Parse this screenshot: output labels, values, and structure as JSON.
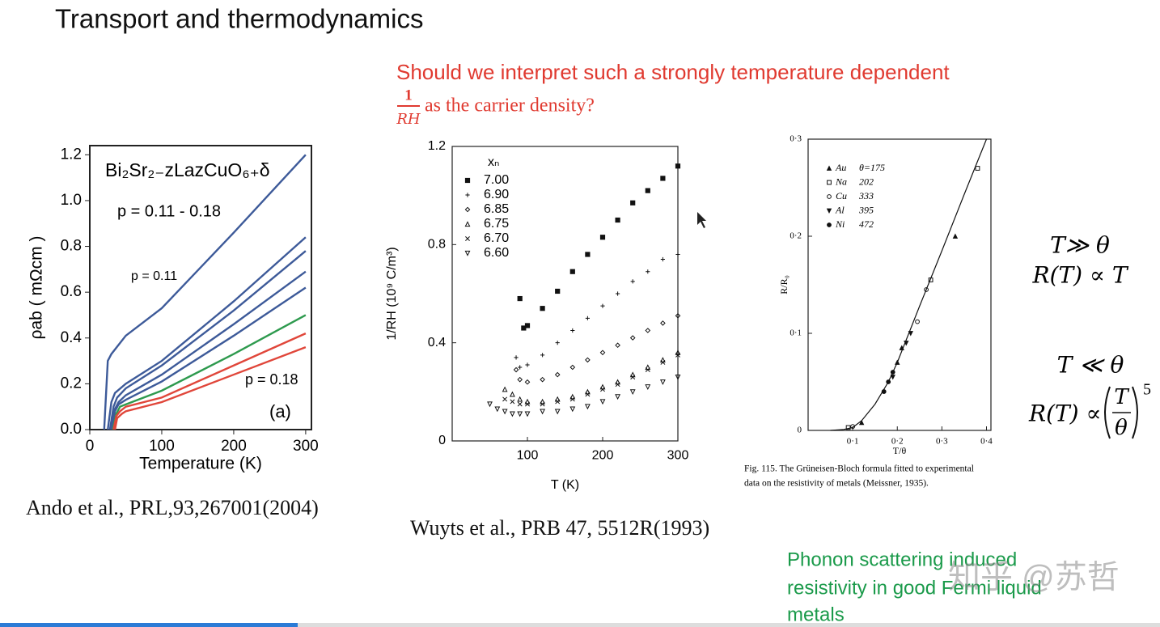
{
  "slide": {
    "title": "Transport and thermodynamics",
    "question": {
      "line1": "Should we interpret such a strongly temperature dependent",
      "numerator": "1",
      "denominator": "RH",
      "line2": "as the carrier density?"
    }
  },
  "chart_data": [
    {
      "type": "line",
      "title": "Bi₂Sr₂₋zLazCuO₆₊δ",
      "x_label": "Temperature (K)",
      "y_label": "ρab  ( mΩcm )",
      "annotations": [
        "p = 0.11 - 0.18",
        "p = 0.11",
        "p = 0.18",
        "(a)"
      ],
      "xlim": [
        0,
        308
      ],
      "ylim": [
        0,
        1.24
      ],
      "xticks": [
        0,
        100,
        200,
        300
      ],
      "yticks": [
        {
          "value": 0,
          "label": "0.0"
        },
        0.2,
        0.4,
        0.6,
        0.8,
        {
          "value": 1,
          "label": "1.0"
        },
        1.2
      ],
      "series": [
        {
          "color": "#3d5a99",
          "x": [
            20,
            25,
            30,
            50,
            100,
            200,
            300
          ],
          "values": [
            0,
            0.3,
            0.33,
            0.41,
            0.53,
            0.86,
            1.2
          ]
        },
        {
          "color": "#3d5a99",
          "x": [
            25,
            30,
            35,
            50,
            100,
            200,
            300
          ],
          "values": [
            0,
            0.12,
            0.16,
            0.2,
            0.3,
            0.56,
            0.84
          ]
        },
        {
          "color": "#3d5a99",
          "x": [
            28,
            33,
            38,
            50,
            100,
            200,
            300
          ],
          "values": [
            0,
            0.1,
            0.14,
            0.18,
            0.28,
            0.52,
            0.78
          ]
        },
        {
          "color": "#3d5a99",
          "x": [
            30,
            35,
            40,
            50,
            100,
            200,
            300
          ],
          "values": [
            0,
            0.09,
            0.12,
            0.15,
            0.24,
            0.46,
            0.69
          ]
        },
        {
          "color": "#3d5a99",
          "x": [
            30,
            35,
            40,
            50,
            100,
            200,
            300
          ],
          "values": [
            0,
            0.08,
            0.11,
            0.13,
            0.21,
            0.41,
            0.62
          ]
        },
        {
          "color": "#2e9a4e",
          "x": [
            32,
            37,
            42,
            50,
            100,
            200,
            300
          ],
          "values": [
            0,
            0.07,
            0.1,
            0.11,
            0.17,
            0.33,
            0.5
          ]
        },
        {
          "color": "#e0463a",
          "x": [
            33,
            37,
            42,
            50,
            100,
            200,
            300
          ],
          "values": [
            0,
            0.06,
            0.08,
            0.1,
            0.14,
            0.28,
            0.42
          ]
        },
        {
          "color": "#e0463a",
          "x": [
            35,
            38,
            45,
            50,
            100,
            200,
            300
          ],
          "values": [
            0,
            0.05,
            0.07,
            0.08,
            0.12,
            0.24,
            0.36
          ]
        }
      ]
    },
    {
      "type": "scatter",
      "x_label": "T (K)",
      "y_label": "1/RH  (10⁹ C/m³)",
      "legend_title": "xₙ",
      "xlim": [
        0,
        300
      ],
      "ylim": [
        0,
        1.2
      ],
      "xticks": [
        100,
        200,
        300
      ],
      "yticks": [
        0,
        0.4,
        0.8,
        1.2
      ],
      "series": [
        {
          "name": "7.00",
          "color": "#111",
          "marker": "square",
          "filled": true,
          "x": [
            90,
            95,
            100,
            120,
            140,
            160,
            180,
            200,
            220,
            240,
            260,
            280,
            300
          ],
          "values": [
            0.58,
            0.46,
            0.47,
            0.54,
            0.61,
            0.69,
            0.76,
            0.83,
            0.9,
            0.97,
            1.02,
            1.07,
            1.12
          ]
        },
        {
          "name": "6.90",
          "color": "#111",
          "marker": "plus",
          "filled": false,
          "x": [
            85,
            90,
            100,
            120,
            140,
            160,
            180,
            200,
            220,
            240,
            260,
            280,
            300
          ],
          "values": [
            0.34,
            0.3,
            0.31,
            0.35,
            0.4,
            0.45,
            0.5,
            0.55,
            0.6,
            0.65,
            0.69,
            0.74,
            0.76
          ]
        },
        {
          "name": "6.85",
          "color": "#111",
          "marker": "diamond",
          "filled": false,
          "x": [
            85,
            90,
            100,
            120,
            140,
            160,
            180,
            200,
            220,
            240,
            260,
            280,
            300
          ],
          "values": [
            0.29,
            0.25,
            0.24,
            0.25,
            0.27,
            0.3,
            0.33,
            0.36,
            0.39,
            0.42,
            0.45,
            0.48,
            0.51
          ]
        },
        {
          "name": "6.75",
          "color": "#111",
          "marker": "triangle",
          "filled": false,
          "x": [
            70,
            80,
            90,
            100,
            120,
            140,
            160,
            180,
            200,
            220,
            240,
            260,
            280,
            300
          ],
          "values": [
            0.21,
            0.19,
            0.17,
            0.16,
            0.16,
            0.17,
            0.18,
            0.2,
            0.22,
            0.24,
            0.27,
            0.3,
            0.33,
            0.36
          ]
        },
        {
          "name": "6.70",
          "color": "#111",
          "marker": "cross",
          "filled": false,
          "x": [
            70,
            80,
            90,
            100,
            120,
            140,
            160,
            180,
            200,
            220,
            240,
            260,
            280,
            300
          ],
          "values": [
            0.17,
            0.16,
            0.15,
            0.15,
            0.15,
            0.16,
            0.17,
            0.19,
            0.21,
            0.23,
            0.26,
            0.29,
            0.32,
            0.35
          ]
        },
        {
          "name": "6.60",
          "color": "#111",
          "marker": "tri-down",
          "filled": false,
          "x": [
            50,
            60,
            70,
            80,
            90,
            100,
            120,
            140,
            160,
            180,
            200,
            220,
            240,
            260,
            280,
            300
          ],
          "values": [
            0.15,
            0.13,
            0.12,
            0.11,
            0.11,
            0.11,
            0.12,
            0.12,
            0.13,
            0.14,
            0.16,
            0.18,
            0.2,
            0.22,
            0.24,
            0.26
          ]
        }
      ]
    },
    {
      "type": "scatter",
      "x_label": "T/θ",
      "y_label": "R/R₀",
      "caption": [
        "Fig. 115.  The Grüneisen-Bloch formula fitted to experimental",
        "data on the resistivity of metals (Meissner, 1935)."
      ],
      "xlim": [
        0,
        0.41
      ],
      "ylim": [
        0,
        0.3
      ],
      "xticks": [
        {
          "value": 0.1,
          "label": "0·1"
        },
        {
          "value": 0.2,
          "label": "0·2"
        },
        {
          "value": 0.3,
          "label": "0·3"
        },
        {
          "value": 0.4,
          "label": "0·4"
        }
      ],
      "yticks": [
        0,
        {
          "value": 0.1,
          "label": "0·1"
        },
        {
          "value": 0.2,
          "label": "0·2"
        },
        {
          "value": 0.3,
          "label": "0·3"
        }
      ],
      "fit": {
        "color": "#111",
        "x": [
          0.05,
          0.08,
          0.1,
          0.12,
          0.15,
          0.18,
          0.2,
          0.25,
          0.3,
          0.35,
          0.4
        ],
        "values": [
          0,
          0.001,
          0.003,
          0.01,
          0.027,
          0.05,
          0.07,
          0.128,
          0.185,
          0.243,
          0.3
        ]
      },
      "series": [
        {
          "name": "Au",
          "theta": "θ=175",
          "color": "#111",
          "marker": "triangle",
          "filled": true,
          "x": [
            0.12,
            0.2,
            0.21,
            0.33
          ],
          "values": [
            0.008,
            0.07,
            0.085,
            0.2
          ]
        },
        {
          "name": "Na",
          "theta": "202",
          "color": "#111",
          "marker": "square",
          "filled": false,
          "x": [
            0.09,
            0.275,
            0.38
          ],
          "values": [
            0.003,
            0.155,
            0.27
          ]
        },
        {
          "name": "Cu",
          "theta": "333",
          "color": "#111",
          "marker": "circle",
          "filled": false,
          "x": [
            0.1,
            0.17,
            0.245,
            0.265
          ],
          "values": [
            0.004,
            0.04,
            0.112,
            0.145
          ]
        },
        {
          "name": "Al",
          "theta": "395",
          "color": "#111",
          "marker": "tri-down",
          "filled": true,
          "x": [
            0.19,
            0.22,
            0.23
          ],
          "values": [
            0.055,
            0.09,
            0.1
          ]
        },
        {
          "name": "Ni",
          "theta": "472",
          "color": "#111",
          "marker": "circle",
          "filled": true,
          "x": [
            0.17,
            0.18,
            0.19
          ],
          "values": [
            0.04,
            0.05,
            0.06
          ]
        }
      ]
    }
  ],
  "citations": [
    "Ando et al., PRL,93,267001(2004)",
    "Wuyts et al.,  PRB 47, 5512R(1993)"
  ],
  "formulas": {
    "high": {
      "condition": "T≫ θ",
      "relation": "R(T) ∝ T"
    },
    "low": {
      "condition": "T ≪ θ",
      "relation": "R(T) ∝",
      "numerator": "T",
      "denominator": "θ",
      "exponent": "5"
    }
  },
  "note": [
    "Phonon scattering induced",
    "resistivity in good Fermi liquid",
    "metals"
  ],
  "watermark": "知乎 @苏哲"
}
